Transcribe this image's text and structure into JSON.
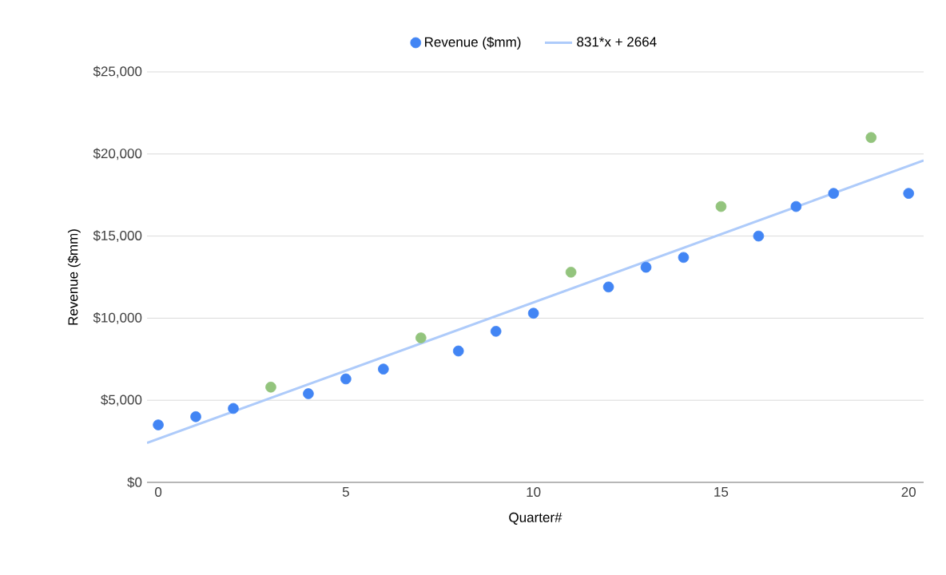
{
  "chart_data": {
    "type": "scatter",
    "xlabel": "Quarter#",
    "ylabel": "Revenue ($mm)",
    "xlim": [
      -0.3,
      20.4
    ],
    "xticks": [
      0,
      5,
      10,
      15,
      20
    ],
    "ylim": [
      0,
      25000
    ],
    "yticks": [
      {
        "value": 0,
        "label": "$0"
      },
      {
        "value": 5000,
        "label": "$5,000"
      },
      {
        "value": 10000,
        "label": "$10,000"
      },
      {
        "value": 15000,
        "label": "$15,000"
      },
      {
        "value": 20000,
        "label": "$20,000"
      },
      {
        "value": 25000,
        "label": "$25,000"
      }
    ],
    "grid": "y",
    "legend": "top",
    "series": [
      {
        "name": "Revenue ($mm)",
        "color": "#4285f4",
        "marker": "circle",
        "x": [
          0,
          1,
          2,
          4,
          5,
          6,
          8,
          9,
          10,
          12,
          13,
          14,
          16,
          17,
          18,
          20
        ],
        "values": [
          3500,
          4000,
          4500,
          5400,
          6300,
          6900,
          8000,
          9200,
          10300,
          11900,
          13100,
          13700,
          15000,
          16800,
          17600,
          17600
        ]
      },
      {
        "color": "#93c47d",
        "marker": "circle",
        "x": [
          3,
          7,
          11,
          15,
          19
        ],
        "values": [
          5800,
          8800,
          12800,
          16800,
          21000
        ]
      },
      {
        "type": "line",
        "name": "831*x + 2664",
        "color": "#aecbfa",
        "marker": "none",
        "x": [
          -0.3,
          20.4
        ],
        "values": [
          2400,
          19600
        ]
      }
    ]
  }
}
